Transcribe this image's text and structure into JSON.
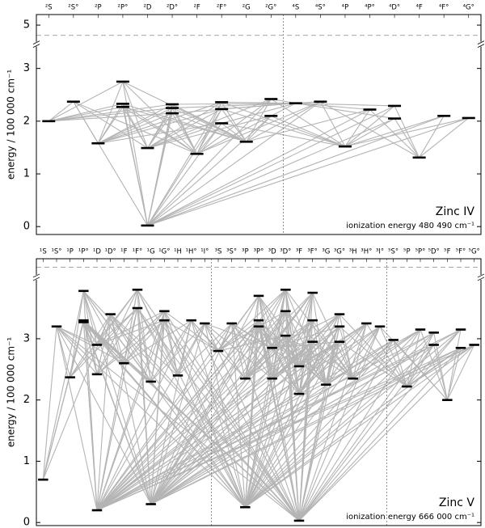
{
  "chart_data": [
    {
      "type": "grotrian",
      "title": "Zinc IV",
      "annotation": "ionization energy  480 490  cm⁻¹",
      "ylabel": "energy / 100 000 cm⁻¹",
      "ylim": [
        -0.15,
        5.2
      ],
      "axis_break": [
        3.4,
        4.7
      ],
      "yticks": [
        0,
        1,
        2,
        3,
        5
      ],
      "ionization_limit": 4.8049,
      "columns": [
        "²S",
        "²S°",
        "²P",
        "²P°",
        "²D",
        "²D°",
        "²F",
        "²F°",
        "²G",
        "²G°",
        "⁴S",
        "⁴S°",
        "⁴P",
        "⁴P°",
        "⁴D°",
        "⁴F",
        "⁴F°",
        "⁴G°"
      ],
      "levels": [
        [
          2.0
        ],
        [
          2.37
        ],
        [
          1.58
        ],
        [
          2.75,
          2.33,
          2.27
        ],
        [
          1.49,
          0.02
        ],
        [
          2.32,
          2.25,
          2.15
        ],
        [
          1.38
        ],
        [
          2.36,
          2.23,
          1.96
        ],
        [
          1.61
        ],
        [
          2.42,
          2.1
        ],
        [
          2.34
        ],
        [
          2.37
        ],
        [
          1.52
        ],
        [
          2.22
        ],
        [
          2.29,
          2.05
        ],
        [
          1.31
        ],
        [
          2.1
        ],
        [
          2.06
        ]
      ]
    },
    {
      "type": "grotrian",
      "title": "Zinc V",
      "annotation": "ionization energy  666 000  cm⁻¹",
      "ylabel": "energy / 100 000 cm⁻¹",
      "ylim": [
        -0.05,
        6.8
      ],
      "axis_break": [
        3.95,
        6.55
      ],
      "yticks": [
        0,
        1,
        2,
        3
      ],
      "ionization_limit": 6.66,
      "columns": [
        "¹S",
        "¹S°",
        "¹P",
        "¹P°",
        "¹D",
        "¹D°",
        "¹F",
        "¹F°",
        "¹G",
        "¹G°",
        "¹H",
        "¹H°",
        "¹I°",
        "³S",
        "³S°",
        "³P",
        "³P°",
        "³D",
        "³D°",
        "³F",
        "³F°",
        "³G",
        "³G°",
        "³H",
        "³H°",
        "³I°",
        "⁵S°",
        "⁵P",
        "⁵P°",
        "⁵D°",
        "⁵F",
        "⁵F°",
        "⁵G°"
      ],
      "levels": [
        [
          0.7
        ],
        [
          3.2
        ],
        [
          2.37
        ],
        [
          3.78,
          3.3,
          3.27
        ],
        [
          2.9,
          2.42,
          0.2
        ],
        [
          3.4
        ],
        [
          2.6
        ],
        [
          3.8,
          3.5
        ],
        [
          2.3,
          0.3
        ],
        [
          3.45,
          3.3
        ],
        [
          2.4
        ],
        [
          3.3
        ],
        [
          3.25
        ],
        [
          2.8
        ],
        [
          3.25
        ],
        [
          2.35,
          0.25
        ],
        [
          3.7,
          3.3,
          3.2
        ],
        [
          2.85,
          2.35
        ],
        [
          3.8,
          3.45,
          3.05
        ],
        [
          2.55,
          2.1,
          0.03
        ],
        [
          3.75,
          3.3,
          2.95
        ],
        [
          2.25
        ],
        [
          3.4,
          3.2,
          2.95
        ],
        [
          2.35
        ],
        [
          3.25
        ],
        [
          3.2
        ],
        [
          2.98
        ],
        [
          2.22
        ],
        [
          3.15
        ],
        [
          3.1,
          2.9
        ],
        [
          2.0
        ],
        [
          3.15,
          2.85
        ],
        [
          2.9
        ]
      ]
    }
  ]
}
